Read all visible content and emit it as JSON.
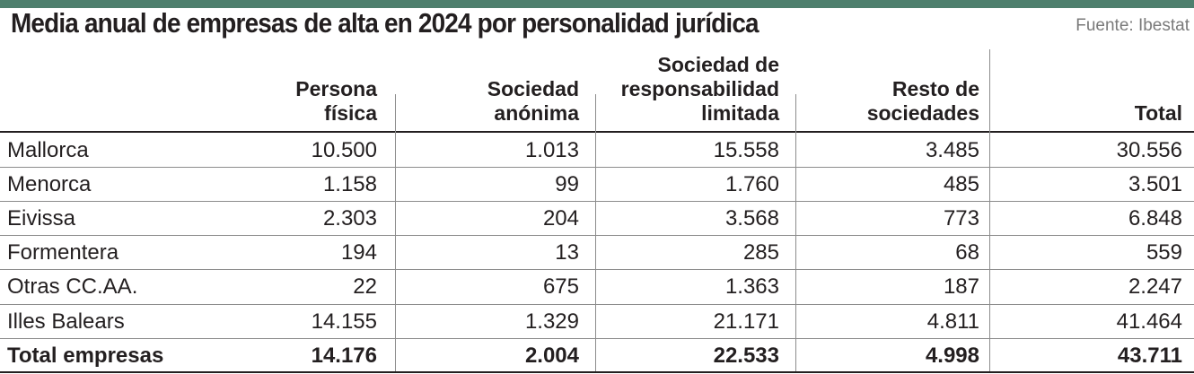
{
  "title": "Media anual de empresas de alta en 2024 por personalidad jurídica",
  "source": "Fuente: Ibestat",
  "chart_data": {
    "type": "table",
    "columns": [
      {
        "lines": [
          "Persona",
          "física"
        ]
      },
      {
        "lines": [
          "Sociedad",
          "anónima"
        ]
      },
      {
        "lines": [
          "Sociedad de",
          "responsabilidad",
          "limitada"
        ]
      },
      {
        "lines": [
          "Resto de",
          "sociedades"
        ]
      },
      {
        "lines": [
          "Total"
        ]
      }
    ],
    "rows": [
      {
        "label": "Mallorca",
        "values": [
          "10.500",
          "1.013",
          "15.558",
          "3.485",
          "30.556"
        ]
      },
      {
        "label": "Menorca",
        "values": [
          "1.158",
          "99",
          "1.760",
          "485",
          "3.501"
        ]
      },
      {
        "label": "Eivissa",
        "values": [
          "2.303",
          "204",
          "3.568",
          "773",
          "6.848"
        ]
      },
      {
        "label": "Formentera",
        "values": [
          "194",
          "13",
          "285",
          "68",
          "559"
        ]
      },
      {
        "label": "Otras CC.AA.",
        "values": [
          "22",
          "675",
          "1.363",
          "187",
          "2.247"
        ]
      },
      {
        "label": "Illes Balears",
        "values": [
          "14.155",
          "1.329",
          "21.171",
          "4.811",
          "41.464"
        ]
      },
      {
        "label": "Total empresas",
        "values": [
          "14.176",
          "2.004",
          "22.533",
          "4.998",
          "43.711"
        ],
        "bold": true
      }
    ]
  }
}
